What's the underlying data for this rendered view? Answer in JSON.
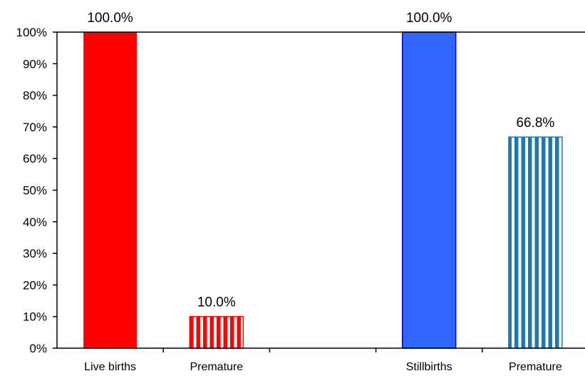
{
  "chart_data": {
    "type": "bar",
    "categories": [
      "Live births",
      "Premature",
      "",
      "Stillbirths",
      "Premature"
    ],
    "values": [
      100.0,
      10.0,
      null,
      100.0,
      66.8
    ],
    "data_labels": [
      "100.0%",
      "10.0%",
      "",
      "100.0%",
      "66.8%"
    ],
    "bar_styles": [
      {
        "fill": "#ff0000",
        "pattern": "solid"
      },
      {
        "fill": "#ff0000",
        "pattern": "vertical-stripes"
      },
      null,
      {
        "fill": "#3366ff",
        "pattern": "solid"
      },
      {
        "fill": "#1f77b4",
        "pattern": "vertical-stripes"
      }
    ],
    "ylim": [
      0,
      100
    ],
    "y_ticks": [
      0,
      10,
      20,
      30,
      40,
      50,
      60,
      70,
      80,
      90,
      100
    ],
    "y_tick_labels": [
      "0%",
      "10%",
      "20%",
      "30%",
      "40%",
      "50%",
      "60%",
      "70%",
      "80%",
      "90%",
      "100%"
    ],
    "grid": false,
    "title": "",
    "xlabel": "",
    "ylabel": ""
  }
}
